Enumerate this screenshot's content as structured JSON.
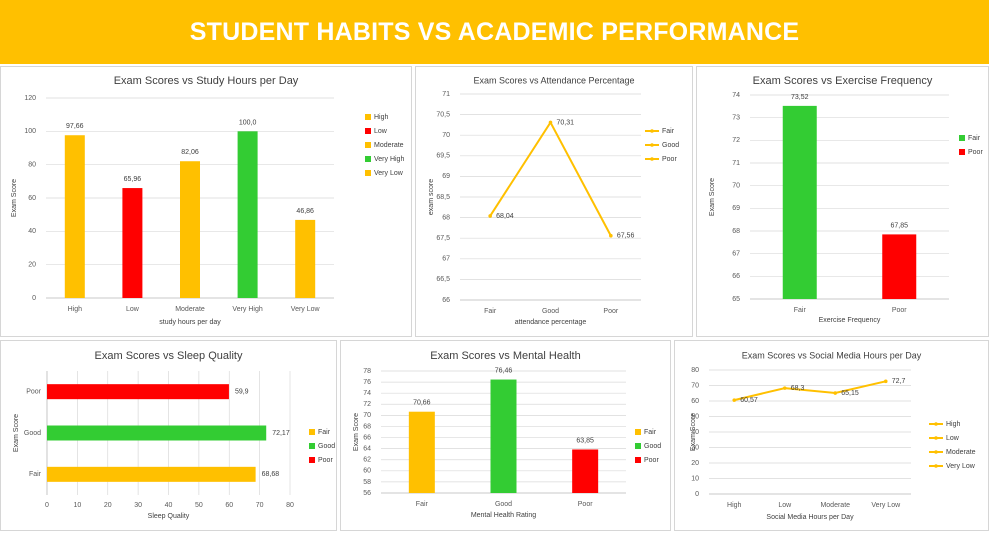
{
  "header": {
    "title": "STUDENT HABITS VS ACADEMIC PERFORMANCE"
  },
  "colors": {
    "banner": "#FFC000",
    "yellow": "#FFC000",
    "red": "#FF0000",
    "green": "#33CC33"
  },
  "chart_data": [
    {
      "id": "study",
      "type": "bar",
      "title": "Exam Scores vs Study Hours per Day",
      "xlabel": "study hours per day",
      "ylabel": "Exam Score",
      "ylim": [
        0,
        120
      ],
      "yticks": [
        "0",
        "20",
        "40",
        "60",
        "80",
        "100",
        "120"
      ],
      "categories": [
        "High",
        "Low",
        "Moderate",
        "Very High",
        "Very Low"
      ],
      "values": [
        97.66,
        65.96,
        82.06,
        100.0,
        46.86
      ],
      "value_labels": [
        "97,66",
        "65,96",
        "82,06",
        "100,0",
        "46,86"
      ],
      "bar_colors": [
        "#FFC000",
        "#FF0000",
        "#FFC000",
        "#33CC33",
        "#FFC000"
      ],
      "legend": [
        {
          "label": "High",
          "color": "#FFC000"
        },
        {
          "label": "Low",
          "color": "#FF0000"
        },
        {
          "label": "Moderate",
          "color": "#FFC000"
        },
        {
          "label": "Very High",
          "color": "#33CC33"
        },
        {
          "label": "Very Low",
          "color": "#FFC000"
        }
      ],
      "legend_position": "right",
      "grid": true
    },
    {
      "id": "attendance",
      "type": "line",
      "title": "Exam Scores vs Attendance Percentage",
      "xlabel": "attendance percentage",
      "ylabel": "exam score",
      "ylim": [
        66,
        71
      ],
      "yticks": [
        "66",
        "66,5",
        "67",
        "67,5",
        "68",
        "68,5",
        "69",
        "69,5",
        "70",
        "70,5",
        "71"
      ],
      "categories": [
        "Fair",
        "Good",
        "Poor"
      ],
      "values": [
        68.04,
        70.31,
        67.56
      ],
      "value_labels": [
        "68,04",
        "70,31",
        "67,56"
      ],
      "line_color": "#FFC000",
      "legend": [
        {
          "label": "Fair",
          "color": "#FFC000"
        },
        {
          "label": "Good",
          "color": "#FFC000"
        },
        {
          "label": "Poor",
          "color": "#FFC000"
        }
      ],
      "legend_position": "right",
      "grid": true
    },
    {
      "id": "exercise",
      "type": "bar",
      "title": "Exam Scores vs Exercise Frequency",
      "xlabel": "Exercise Frequency",
      "ylabel": "Exam Score",
      "ylim": [
        65,
        74
      ],
      "yticks": [
        "65",
        "66",
        "67",
        "68",
        "69",
        "70",
        "71",
        "72",
        "73",
        "74"
      ],
      "categories": [
        "Fair",
        "Poor"
      ],
      "values": [
        73.52,
        67.85
      ],
      "value_labels": [
        "73,52",
        "67,85"
      ],
      "bar_colors": [
        "#33CC33",
        "#FF0000"
      ],
      "legend": [
        {
          "label": "Fair",
          "color": "#33CC33"
        },
        {
          "label": "Poor",
          "color": "#FF0000"
        }
      ],
      "legend_position": "right",
      "grid": true
    },
    {
      "id": "sleep",
      "type": "bar",
      "orientation": "horizontal",
      "title": "Exam Scores vs Sleep Quality",
      "xlabel": "Sleep Quality",
      "ylabel": "Exam Score",
      "xlim": [
        0,
        80
      ],
      "xticks": [
        "0",
        "10",
        "20",
        "30",
        "40",
        "50",
        "60",
        "70",
        "80"
      ],
      "categories": [
        "Fair",
        "Good",
        "Poor"
      ],
      "values": [
        68.68,
        72.17,
        59.9
      ],
      "value_labels": [
        "68,68",
        "72,17",
        "59,9"
      ],
      "bar_colors": [
        "#FFC000",
        "#33CC33",
        "#FF0000"
      ],
      "legend": [
        {
          "label": "Fair",
          "color": "#FFC000"
        },
        {
          "label": "Good",
          "color": "#33CC33"
        },
        {
          "label": "Poor",
          "color": "#FF0000"
        }
      ],
      "legend_position": "right",
      "grid": true
    },
    {
      "id": "mental",
      "type": "bar",
      "title": "Exam Scores vs Mental Health",
      "xlabel": "Mental Health Rating",
      "ylabel": "Exam Score",
      "ylim": [
        56,
        78
      ],
      "yticks": [
        "56",
        "58",
        "60",
        "62",
        "64",
        "66",
        "68",
        "70",
        "72",
        "74",
        "76",
        "78"
      ],
      "categories": [
        "Fair",
        "Good",
        "Poor"
      ],
      "values": [
        70.66,
        76.46,
        63.85
      ],
      "value_labels": [
        "70,66",
        "76,46",
        "63,85"
      ],
      "bar_colors": [
        "#FFC000",
        "#33CC33",
        "#FF0000"
      ],
      "legend": [
        {
          "label": "Fair",
          "color": "#FFC000"
        },
        {
          "label": "Good",
          "color": "#33CC33"
        },
        {
          "label": "Poor",
          "color": "#FF0000"
        }
      ],
      "legend_position": "right",
      "grid": true
    },
    {
      "id": "social",
      "type": "line",
      "title": "Exam Scores vs Social Media Hours per Day",
      "xlabel": "Social Media Hours per Day",
      "ylabel": "Exam Score",
      "ylim": [
        0,
        80
      ],
      "yticks": [
        "0",
        "10",
        "20",
        "30",
        "40",
        "50",
        "60",
        "70",
        "80"
      ],
      "categories": [
        "High",
        "Low",
        "Moderate",
        "Very Low"
      ],
      "values": [
        60.57,
        68.3,
        65.15,
        72.7
      ],
      "value_labels": [
        "60,57",
        "68,3",
        "65,15",
        "72,7"
      ],
      "line_color": "#FFC000",
      "legend": [
        {
          "label": "High",
          "color": "#FFC000"
        },
        {
          "label": "Low",
          "color": "#FFC000"
        },
        {
          "label": "Moderate",
          "color": "#FFC000"
        },
        {
          "label": "Very Low",
          "color": "#FFC000"
        }
      ],
      "legend_position": "right",
      "grid": true
    }
  ]
}
